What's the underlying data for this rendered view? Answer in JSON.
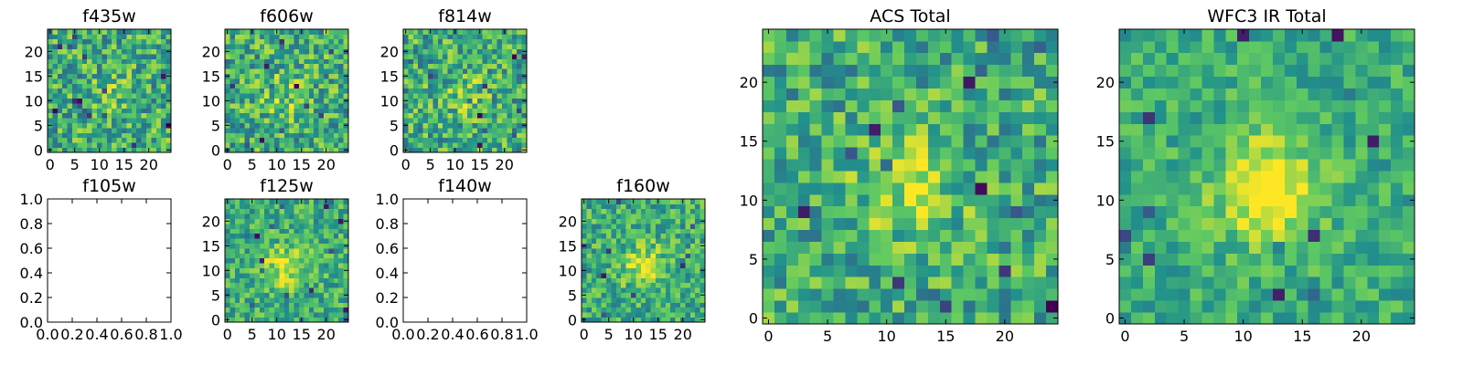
{
  "chart_data": {
    "type": "heatmap",
    "colormap": [
      "#440154",
      "#3b528b",
      "#21918c",
      "#5ec962",
      "#fde725"
    ],
    "panels": [
      {
        "id": "f435w",
        "title": "f435w",
        "kind": "image",
        "xticks": [
          "0",
          "5",
          "10",
          "15",
          "20"
        ],
        "yticks": [
          "0",
          "5",
          "10",
          "15",
          "20"
        ],
        "seed": 11,
        "peak": 0.25,
        "noise": 1.0
      },
      {
        "id": "f606w",
        "title": "f606w",
        "kind": "image",
        "xticks": [
          "0",
          "5",
          "10",
          "15",
          "20"
        ],
        "yticks": [
          "0",
          "5",
          "10",
          "15",
          "20"
        ],
        "seed": 23,
        "peak": 0.45,
        "noise": 1.0
      },
      {
        "id": "f814w",
        "title": "f814w",
        "kind": "image",
        "xticks": [
          "0",
          "5",
          "10",
          "15",
          "20"
        ],
        "yticks": [
          "0",
          "5",
          "10",
          "15",
          "20"
        ],
        "seed": 37,
        "peak": 0.4,
        "noise": 1.0
      },
      {
        "id": "f105w",
        "title": "f105w",
        "kind": "empty",
        "xticks": [
          "0.0",
          "0.2",
          "0.4",
          "0.6",
          "0.8",
          "1.0"
        ],
        "yticks": [
          "0.0",
          "0.2",
          "0.4",
          "0.6",
          "0.8",
          "1.0"
        ]
      },
      {
        "id": "f125w",
        "title": "f125w",
        "kind": "image",
        "xticks": [
          "0",
          "5",
          "10",
          "15",
          "20"
        ],
        "yticks": [
          "0",
          "5",
          "10",
          "15",
          "20"
        ],
        "seed": 41,
        "peak": 0.75,
        "noise": 0.8
      },
      {
        "id": "f140w",
        "title": "f140w",
        "kind": "empty",
        "xticks": [
          "0.0",
          "0.2",
          "0.4",
          "0.6",
          "0.8",
          "1.0"
        ],
        "yticks": [
          "0.0",
          "0.2",
          "0.4",
          "0.6",
          "0.8",
          "1.0"
        ]
      },
      {
        "id": "f160w",
        "title": "f160w",
        "kind": "image",
        "xticks": [
          "0",
          "5",
          "10",
          "15",
          "20"
        ],
        "yticks": [
          "0",
          "5",
          "10",
          "15",
          "20"
        ],
        "seed": 53,
        "peak": 0.7,
        "noise": 0.8
      },
      {
        "id": "acs_total",
        "title": "ACS Total",
        "kind": "image",
        "xticks": [
          "0",
          "5",
          "10",
          "15",
          "20"
        ],
        "yticks": [
          "0",
          "5",
          "10",
          "15",
          "20"
        ],
        "seed": 67,
        "peak": 0.6,
        "noise": 0.9
      },
      {
        "id": "wfc3_ir_total",
        "title": "WFC3 IR Total",
        "kind": "image",
        "xticks": [
          "0",
          "5",
          "10",
          "15",
          "20"
        ],
        "yticks": [
          "0",
          "5",
          "10",
          "15",
          "20"
        ],
        "seed": 79,
        "peak": 1.0,
        "noise": 0.6
      }
    ],
    "image_grid": {
      "size": 25,
      "center": [
        12,
        11
      ],
      "x_range": [
        -0.5,
        24.5
      ],
      "y_range": [
        -0.5,
        24.5
      ]
    },
    "empty_range": {
      "x": [
        0.0,
        1.0
      ],
      "y": [
        0.0,
        1.0
      ]
    }
  }
}
